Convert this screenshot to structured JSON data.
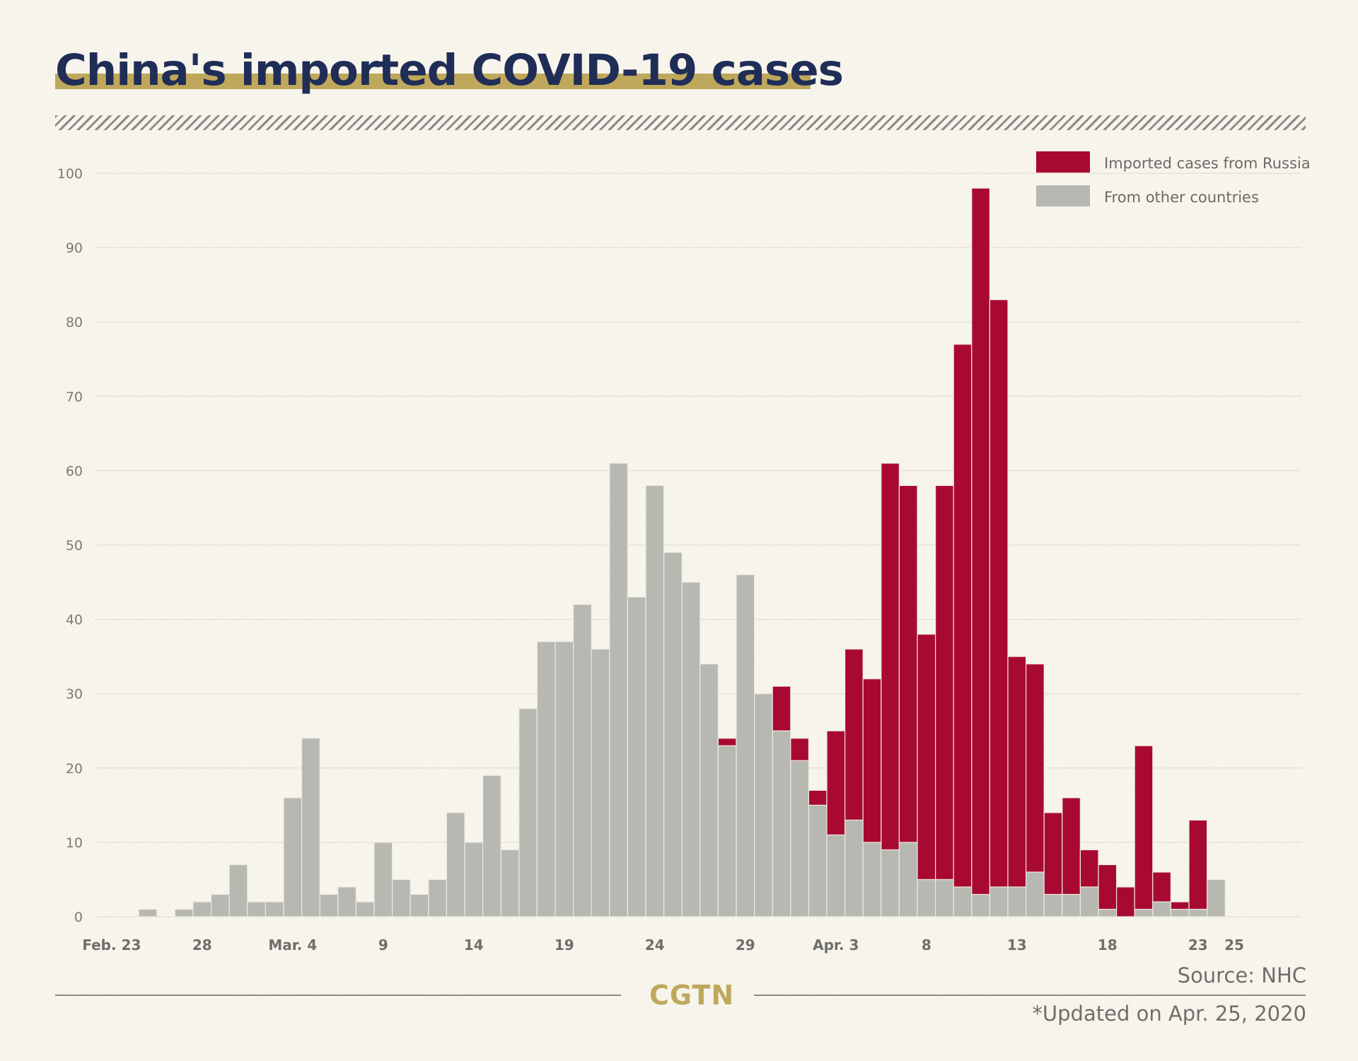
{
  "title": "China's imported COVID-19 cases",
  "source": "Source: NHC",
  "updated": "*Updated on Apr. 25, 2020",
  "logo": "CGTN",
  "colors": {
    "russia": "#a80930",
    "other": "#b8b8b2",
    "title": "#1f2d57",
    "accent": "#bfa85c"
  },
  "chart_data": {
    "type": "bar",
    "stacked": true,
    "x_start": "Feb. 23",
    "x_end": "Apr. 25",
    "categories": [
      "Feb. 23",
      "Feb. 24",
      "Feb. 25",
      "Feb. 26",
      "Feb. 27",
      "Feb. 28",
      "Feb. 29",
      "Mar. 1",
      "Mar. 2",
      "Mar. 3",
      "Mar. 4",
      "Mar. 5",
      "Mar. 6",
      "Mar. 7",
      "Mar. 8",
      "Mar. 9",
      "Mar. 10",
      "Mar. 11",
      "Mar. 12",
      "Mar. 13",
      "Mar. 14",
      "Mar. 15",
      "Mar. 16",
      "Mar. 17",
      "Mar. 18",
      "Mar. 19",
      "Mar. 20",
      "Mar. 21",
      "Mar. 22",
      "Mar. 23",
      "Mar. 24",
      "Mar. 25",
      "Mar. 26",
      "Mar. 27",
      "Mar. 28",
      "Mar. 29",
      "Mar. 30",
      "Mar. 31",
      "Apr. 1",
      "Apr. 2",
      "Apr. 3",
      "Apr. 4",
      "Apr. 5",
      "Apr. 6",
      "Apr. 7",
      "Apr. 8",
      "Apr. 9",
      "Apr. 10",
      "Apr. 11",
      "Apr. 12",
      "Apr. 13",
      "Apr. 14",
      "Apr. 15",
      "Apr. 16",
      "Apr. 17",
      "Apr. 18",
      "Apr. 19",
      "Apr. 20",
      "Apr. 21",
      "Apr. 22",
      "Apr. 23",
      "Apr. 24",
      "Apr. 25"
    ],
    "tick_labels": [
      {
        "index": 0,
        "label": "Feb. 23"
      },
      {
        "index": 5,
        "label": "28"
      },
      {
        "index": 10,
        "label": "Mar. 4"
      },
      {
        "index": 15,
        "label": "9"
      },
      {
        "index": 20,
        "label": "14"
      },
      {
        "index": 25,
        "label": "19"
      },
      {
        "index": 30,
        "label": "24"
      },
      {
        "index": 35,
        "label": "29"
      },
      {
        "index": 40,
        "label": "Apr. 3"
      },
      {
        "index": 45,
        "label": "8"
      },
      {
        "index": 50,
        "label": "13"
      },
      {
        "index": 55,
        "label": "18"
      },
      {
        "index": 60,
        "label": "23"
      },
      {
        "index": 62,
        "label": "25"
      }
    ],
    "series": [
      {
        "name": "From other countries",
        "color": "#b8b8b2",
        "values": [
          0,
          0,
          1,
          0,
          1,
          2,
          3,
          7,
          2,
          2,
          16,
          24,
          3,
          4,
          2,
          10,
          5,
          3,
          5,
          14,
          10,
          19,
          9,
          28,
          37,
          37,
          42,
          36,
          61,
          43,
          58,
          49,
          45,
          34,
          23,
          46,
          30,
          25,
          21,
          15,
          11,
          13,
          10,
          9,
          10,
          5,
          5,
          4,
          3,
          4,
          4,
          6,
          3,
          3,
          4,
          1,
          0,
          1,
          2,
          1,
          1,
          5,
          0
        ]
      },
      {
        "name": "Imported cases from Russia",
        "color": "#a80930",
        "values": [
          0,
          0,
          0,
          0,
          0,
          0,
          0,
          0,
          0,
          0,
          0,
          0,
          0,
          0,
          0,
          0,
          0,
          0,
          0,
          0,
          0,
          0,
          0,
          0,
          0,
          0,
          0,
          0,
          0,
          0,
          0,
          0,
          0,
          0,
          1,
          0,
          0,
          6,
          3,
          2,
          14,
          23,
          22,
          52,
          48,
          33,
          53,
          73,
          95,
          79,
          31,
          28,
          11,
          13,
          5,
          6,
          4,
          22,
          4,
          1,
          12,
          0,
          0
        ]
      }
    ],
    "ylim": [
      0,
      100
    ],
    "yticks": [
      0,
      10,
      20,
      30,
      40,
      50,
      60,
      70,
      80,
      90,
      100
    ],
    "grid": true,
    "legend": {
      "position": "top-right",
      "items": [
        {
          "label": "Imported cases from Russia",
          "color": "#a80930"
        },
        {
          "label": "From other countries",
          "color": "#b8b8b2"
        }
      ]
    },
    "xlabel": "",
    "ylabel": ""
  }
}
